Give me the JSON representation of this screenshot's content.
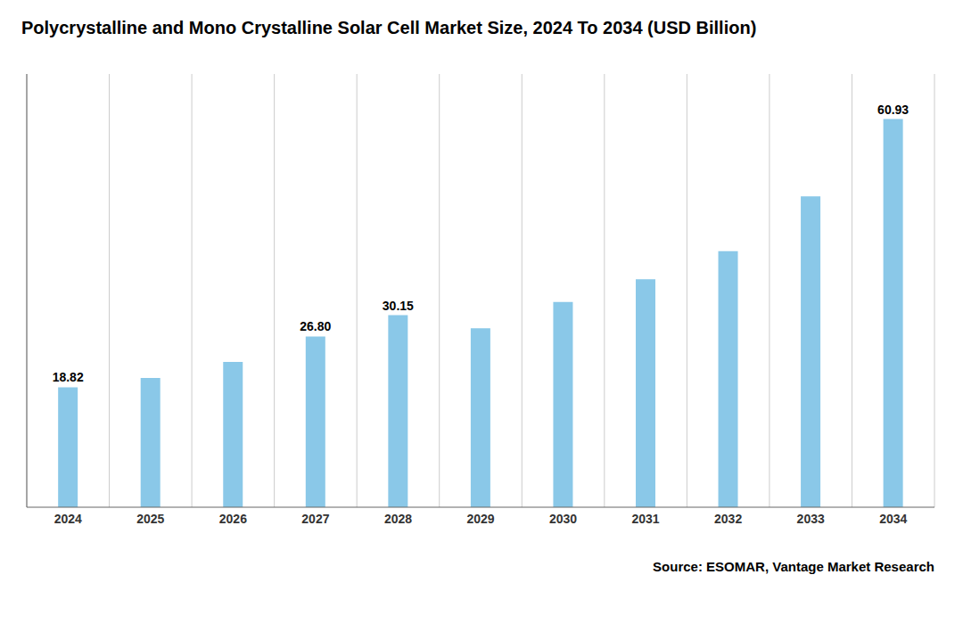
{
  "chart_data": {
    "type": "bar",
    "title": "Polycrystalline and Mono Crystalline Solar Cell Market Size, 2024 To 2034 (USD Billion)",
    "categories": [
      "2024",
      "2025",
      "2026",
      "2027",
      "2028",
      "2029",
      "2030",
      "2031",
      "2032",
      "2033",
      "2034"
    ],
    "values": [
      18.82,
      20.3,
      22.8,
      26.8,
      30.15,
      28.1,
      32.2,
      35.8,
      40.2,
      48.8,
      60.93
    ],
    "value_labels": [
      "18.82",
      null,
      null,
      "26.80",
      "30.15",
      null,
      null,
      null,
      null,
      null,
      "60.93"
    ],
    "data_labels": true,
    "color": "#8AC8E8",
    "ylim": [
      0,
      68
    ],
    "yticks": [],
    "grid": true,
    "tick_labels": "x",
    "source": "Source: ESOMAR, Vantage Market Research"
  }
}
